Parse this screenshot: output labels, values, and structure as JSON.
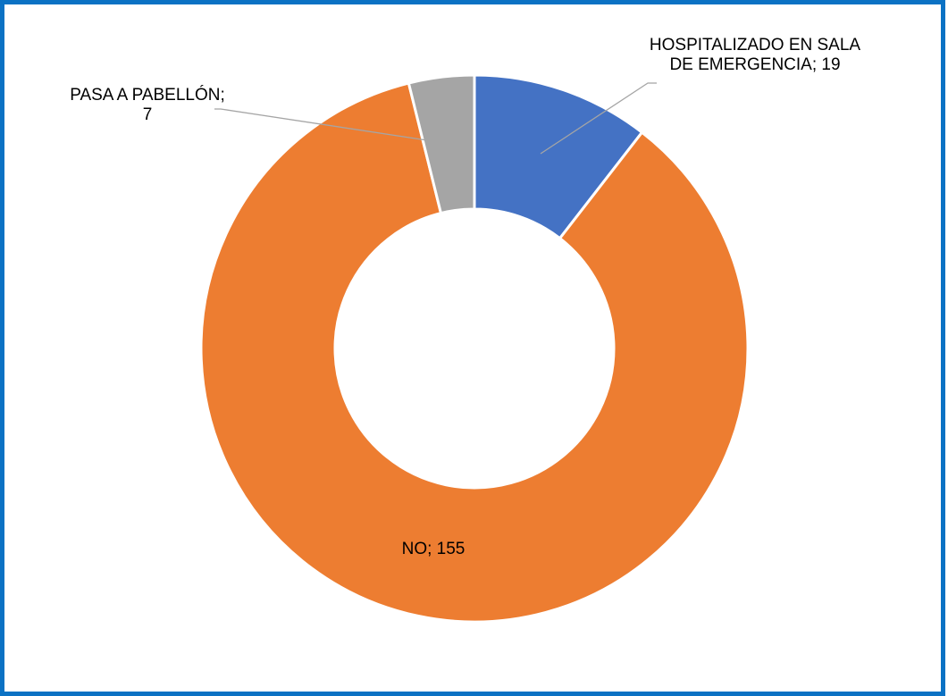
{
  "chart_data": {
    "type": "pie",
    "categories": [
      "HOSPITALIZADO EN SALA DE EMERGENCIA",
      "NO",
      "PASA A PABELLÓN"
    ],
    "values": [
      19,
      155,
      7
    ],
    "colors": [
      "#4472c4",
      "#ed7d31",
      "#a5a5a5"
    ],
    "label_separator": "; ",
    "donut": true
  }
}
